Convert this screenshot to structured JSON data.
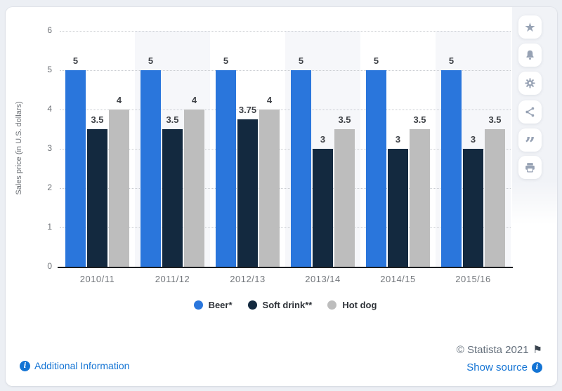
{
  "page": {
    "background": "#eceff4",
    "card_background": "#ffffff"
  },
  "chart_data": {
    "type": "bar",
    "title": "",
    "categories": [
      "2010/11",
      "2011/12",
      "2012/13",
      "2013/14",
      "2014/15",
      "2015/16"
    ],
    "series": [
      {
        "name": "Beer*",
        "color": "#2a76dc",
        "values": [
          5,
          5,
          5,
          5,
          5,
          5
        ]
      },
      {
        "name": "Soft drink**",
        "color": "#13293f",
        "values": [
          3.5,
          3.5,
          3.75,
          3,
          3,
          3
        ]
      },
      {
        "name": "Hot dog",
        "color": "#bdbdbd",
        "values": [
          4,
          4,
          4,
          3.5,
          3.5,
          3.5
        ]
      }
    ],
    "xlabel": "",
    "ylabel": "Sales price (in U.S. dollars)",
    "ylim": [
      0,
      6
    ],
    "ytick_step": 1,
    "yticks": [
      0,
      1,
      2,
      3,
      4,
      5,
      6
    ],
    "grid": "horizontal-dotted",
    "bar_value_labels": true,
    "banded_category_indexes": [
      1,
      3,
      5
    ],
    "band_color": "#f6f7fa",
    "legend_position": "bottom-center"
  },
  "toolbar": {
    "buttons": [
      {
        "icon": "star"
      },
      {
        "icon": "bell"
      },
      {
        "icon": "gear"
      },
      {
        "icon": "share"
      },
      {
        "icon": "quote"
      },
      {
        "icon": "print"
      }
    ]
  },
  "footer": {
    "additional_info_label": "Additional Information",
    "copyright": "© Statista 2021",
    "show_source_label": "Show source"
  }
}
